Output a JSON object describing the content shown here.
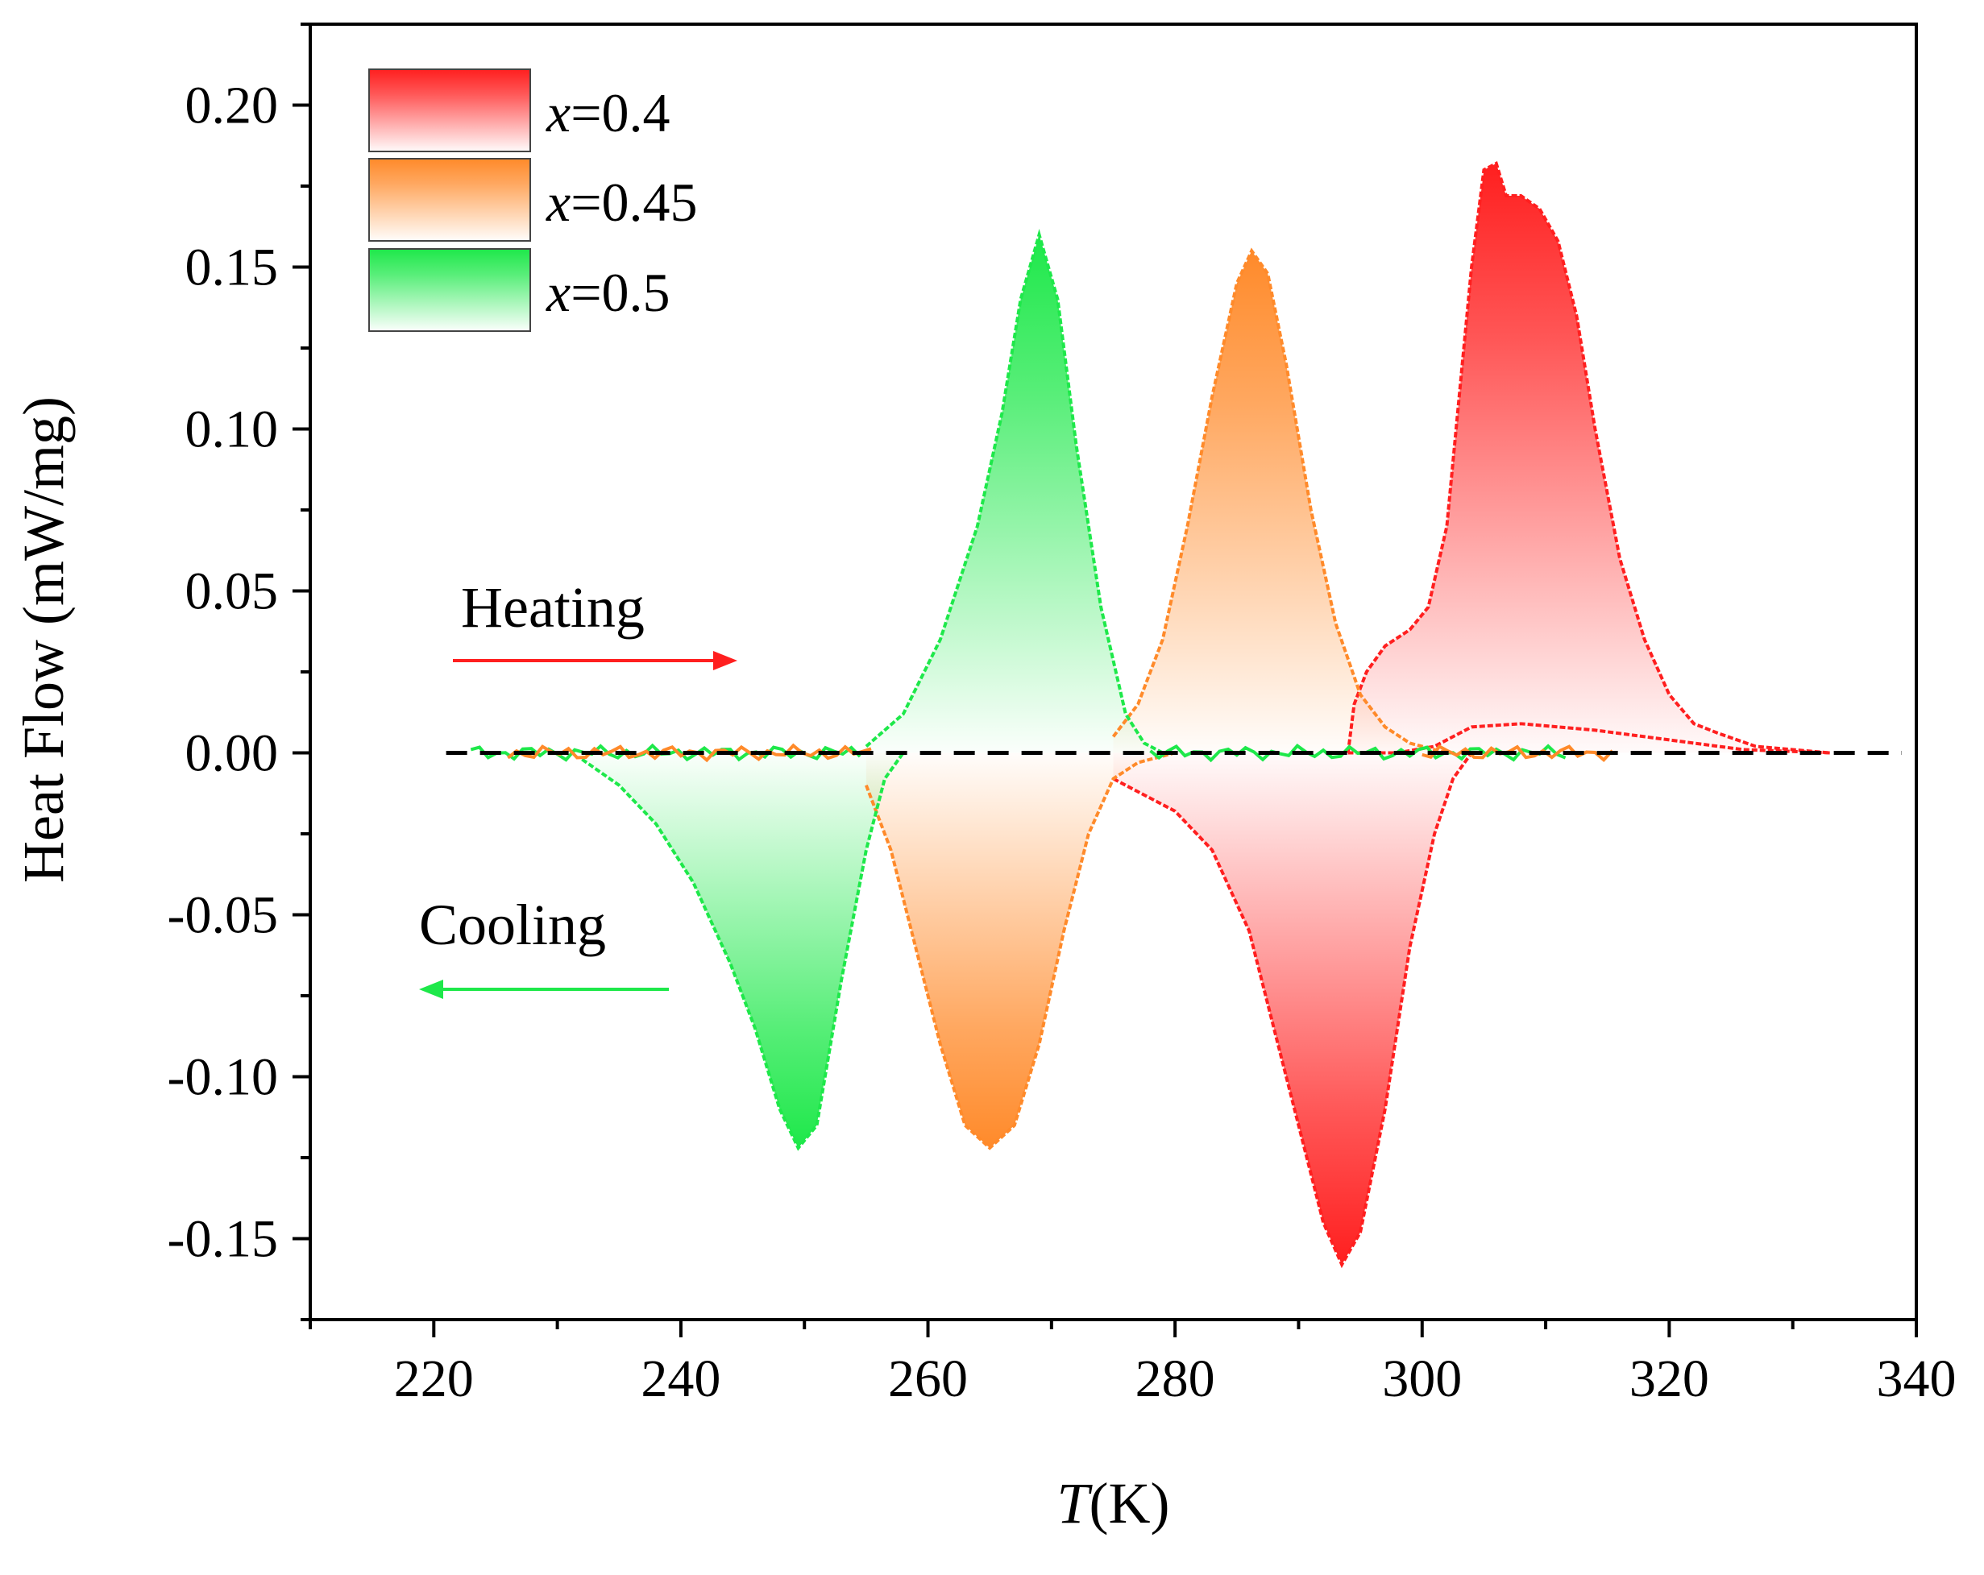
{
  "chart_data": {
    "type": "area",
    "title": "",
    "xlabel": {
      "italic": "T",
      "rest": "(K)"
    },
    "ylabel": "Heat  Flow (mW/mg)",
    "xlim": [
      210,
      340
    ],
    "ylim": [
      -0.175,
      0.225
    ],
    "xticks": [
      220,
      240,
      260,
      280,
      300,
      320,
      340
    ],
    "xtick_labels": [
      "220",
      "240",
      "260",
      "280",
      "300",
      "320",
      "340"
    ],
    "yticks": [
      -0.15,
      -0.1,
      -0.05,
      0.0,
      0.05,
      0.1,
      0.15,
      0.2
    ],
    "ytick_labels": [
      "-0.15",
      "-0.10",
      "-0.05",
      "0.00",
      "0.05",
      "0.10",
      "0.15",
      "0.20"
    ],
    "baseline_y": 0,
    "legend_position": "top-left",
    "series": [
      {
        "name": "x=0.4",
        "legend_italic": "x",
        "legend_rest": "=0.4",
        "color": "#ff1f1f",
        "heating": [
          [
            294,
            0.0
          ],
          [
            294.5,
            0.015
          ],
          [
            295.5,
            0.025
          ],
          [
            297,
            0.033
          ],
          [
            299,
            0.038
          ],
          [
            300.5,
            0.045
          ],
          [
            302,
            0.07
          ],
          [
            303,
            0.11
          ],
          [
            304,
            0.15
          ],
          [
            305,
            0.18
          ],
          [
            306,
            0.182
          ],
          [
            306.8,
            0.172
          ],
          [
            308,
            0.172
          ],
          [
            309.5,
            0.168
          ],
          [
            311,
            0.158
          ],
          [
            312.5,
            0.135
          ],
          [
            314,
            0.1
          ],
          [
            316,
            0.06
          ],
          [
            318,
            0.035
          ],
          [
            320,
            0.018
          ],
          [
            322,
            0.009
          ],
          [
            324,
            0.006
          ],
          [
            327,
            0.002
          ],
          [
            330,
            0.001
          ],
          [
            333,
            0.0
          ]
        ],
        "heating_return": [
          [
            333,
            0.0
          ],
          [
            326,
            0.001
          ],
          [
            320,
            0.004
          ],
          [
            314,
            0.007
          ],
          [
            308,
            0.009
          ],
          [
            304,
            0.008
          ],
          [
            301,
            0.002
          ],
          [
            298,
            0.0
          ],
          [
            294,
            0.0
          ]
        ],
        "cooling": [
          [
            275,
            -0.008
          ],
          [
            277,
            -0.012
          ],
          [
            280,
            -0.018
          ],
          [
            283,
            -0.03
          ],
          [
            286,
            -0.055
          ],
          [
            288,
            -0.085
          ],
          [
            290,
            -0.115
          ],
          [
            292,
            -0.145
          ],
          [
            293.5,
            -0.158
          ],
          [
            295,
            -0.148
          ],
          [
            297,
            -0.11
          ],
          [
            299,
            -0.06
          ],
          [
            301,
            -0.025
          ],
          [
            302.5,
            -0.008
          ],
          [
            304,
            0.0
          ]
        ]
      },
      {
        "name": "x=0.45",
        "legend_italic": "x",
        "legend_rest": "=0.45",
        "color": "#ff8a2a",
        "heating": [
          [
            275,
            0.005
          ],
          [
            277,
            0.015
          ],
          [
            279,
            0.035
          ],
          [
            281,
            0.07
          ],
          [
            283,
            0.11
          ],
          [
            285,
            0.145
          ],
          [
            286.2,
            0.155
          ],
          [
            287.5,
            0.148
          ],
          [
            289,
            0.12
          ],
          [
            291,
            0.075
          ],
          [
            293,
            0.04
          ],
          [
            295,
            0.018
          ],
          [
            297,
            0.008
          ],
          [
            299,
            0.003
          ],
          [
            302,
            0.0
          ]
        ],
        "cooling": [
          [
            255,
            -0.01
          ],
          [
            257,
            -0.03
          ],
          [
            259,
            -0.06
          ],
          [
            261,
            -0.09
          ],
          [
            263,
            -0.115
          ],
          [
            265,
            -0.122
          ],
          [
            267,
            -0.115
          ],
          [
            269,
            -0.09
          ],
          [
            271,
            -0.055
          ],
          [
            273,
            -0.025
          ],
          [
            275,
            -0.008
          ],
          [
            277,
            -0.003
          ],
          [
            280,
            0.0
          ]
        ]
      },
      {
        "name": "x=0.5",
        "legend_italic": "x",
        "legend_rest": "=0.5",
        "color": "#1ee84a",
        "heating": [
          [
            255,
            0.002
          ],
          [
            258,
            0.012
          ],
          [
            261,
            0.035
          ],
          [
            264,
            0.07
          ],
          [
            266,
            0.105
          ],
          [
            267.5,
            0.14
          ],
          [
            269,
            0.16
          ],
          [
            270.5,
            0.14
          ],
          [
            272,
            0.095
          ],
          [
            274,
            0.045
          ],
          [
            276,
            0.012
          ],
          [
            277.5,
            0.003
          ],
          [
            279,
            0.0
          ]
        ],
        "cooling": [
          [
            232,
            -0.002
          ],
          [
            235,
            -0.01
          ],
          [
            238,
            -0.022
          ],
          [
            241,
            -0.04
          ],
          [
            244,
            -0.065
          ],
          [
            246,
            -0.085
          ],
          [
            248,
            -0.11
          ],
          [
            249.5,
            -0.122
          ],
          [
            251,
            -0.115
          ],
          [
            253,
            -0.07
          ],
          [
            255,
            -0.03
          ],
          [
            256.5,
            -0.008
          ],
          [
            258,
            0.0
          ]
        ]
      }
    ],
    "annotations": [
      {
        "text": "Heating",
        "arrow": "right",
        "color": "#ff1f1f"
      },
      {
        "text": "Cooling",
        "arrow": "left",
        "color": "#1ee84a"
      }
    ]
  }
}
